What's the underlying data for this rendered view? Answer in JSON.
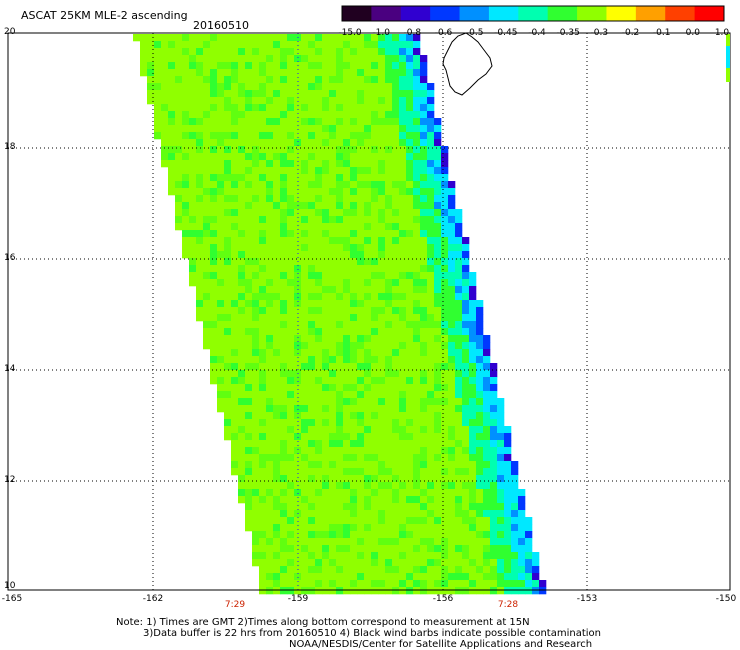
{
  "title": "ASCAT 25KM MLE-2 ascending",
  "date": "20160510",
  "colorbar": {
    "labels": [
      "-15.0",
      "-1.0",
      "-0.8",
      "-0.6",
      "-0.5",
      "-0.45",
      "-0.4",
      "-0.35",
      "-0.3",
      "-0.2",
      "-0.1",
      "0.0",
      "1.0"
    ],
    "colors": [
      "#200020",
      "#4a0080",
      "#3000d0",
      "#0038ff",
      "#0090ff",
      "#00e8ff",
      "#00ffb0",
      "#30ff30",
      "#90ff00",
      "#ffff00",
      "#ffa000",
      "#ff4000",
      "#ff0000"
    ]
  },
  "y_axis": {
    "ticks": [
      "20",
      "18",
      "16",
      "14",
      "12",
      "10"
    ]
  },
  "x_axis": {
    "ticks": [
      "-165",
      "-162",
      "-159",
      "-156",
      "-153",
      "-150"
    ]
  },
  "times": [
    "7:29",
    "7:28"
  ],
  "notes": [
    "Note: 1) Times are GMT 2)Times along bottom correspond to measurement at 15N",
    "3)Data buffer is 22 hrs from 20160510 4) Black wind barbs indicate possible contamination",
    "NOAA/NESDIS/Center for Satellite Applications and Research"
  ]
}
